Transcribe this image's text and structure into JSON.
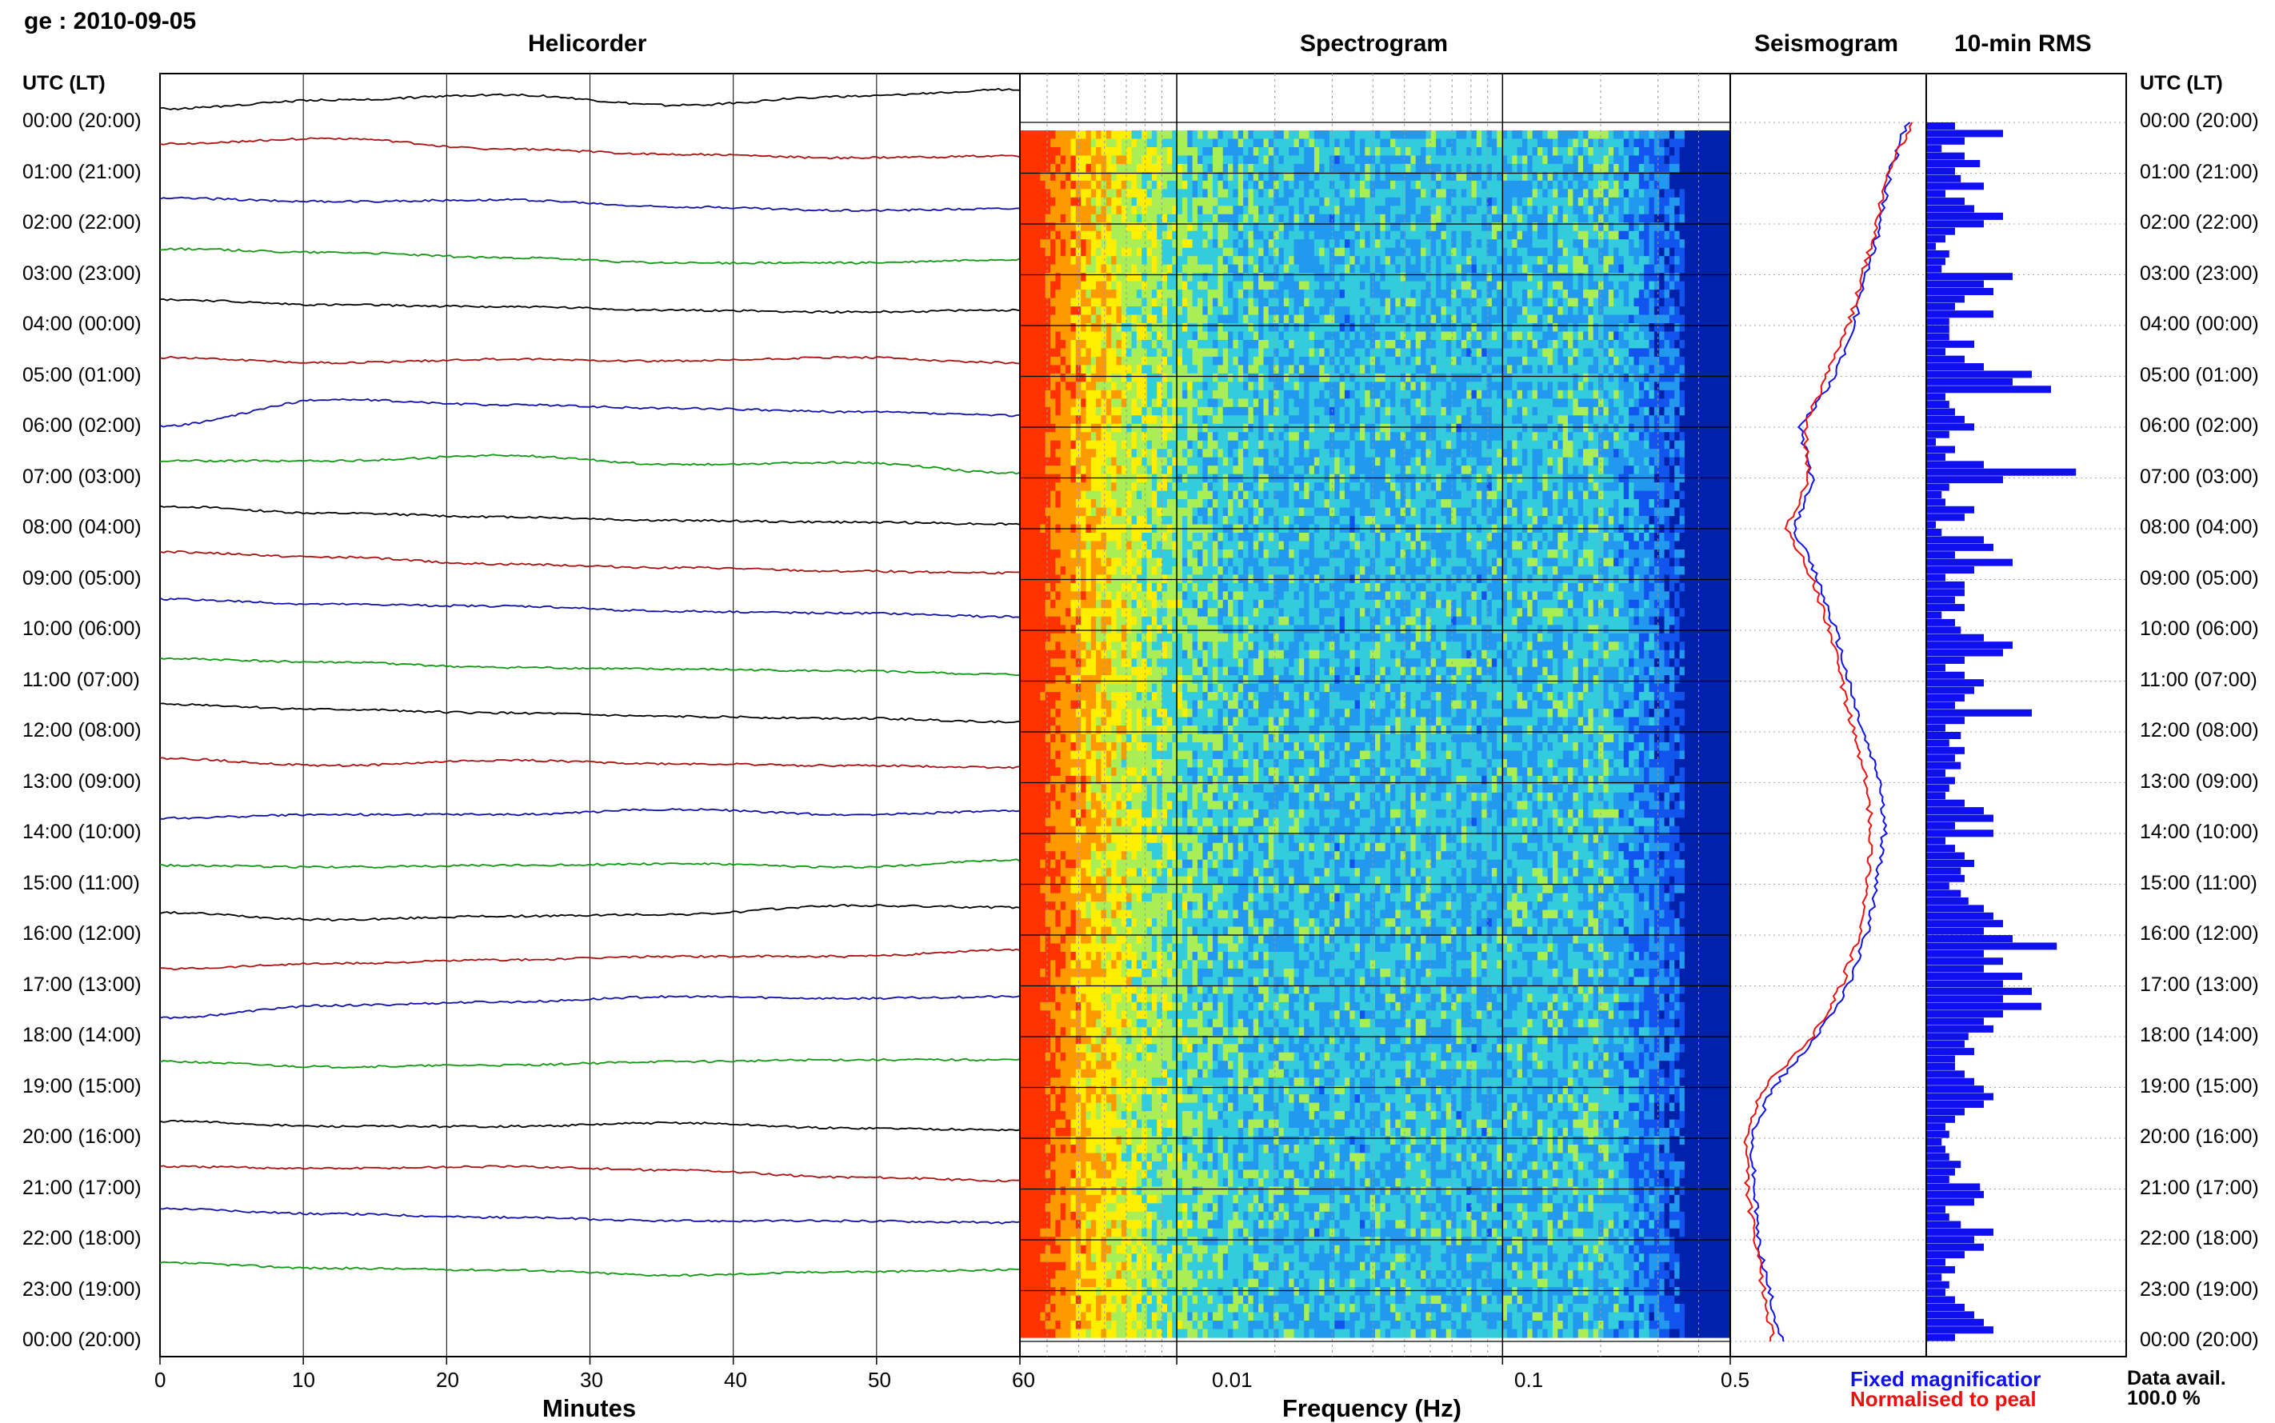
{
  "header": {
    "station_date": "ge : 2010-09-05"
  },
  "panels": {
    "helicorder": "Helicorder",
    "spectrogram": "Spectrogram",
    "seismogram": "Seismogram",
    "rms": "10-min RMS"
  },
  "time_axis_title": "UTC (LT)",
  "row_labels": [
    "00:00 (20:00)",
    "01:00 (21:00)",
    "02:00 (22:00)",
    "03:00 (23:00)",
    "04:00 (00:00)",
    "05:00 (01:00)",
    "06:00 (02:00)",
    "07:00 (03:00)",
    "08:00 (04:00)",
    "09:00 (05:00)",
    "10:00 (06:00)",
    "11:00 (07:00)",
    "12:00 (08:00)",
    "13:00 (09:00)",
    "14:00 (10:00)",
    "15:00 (11:00)",
    "16:00 (12:00)",
    "17:00 (13:00)",
    "18:00 (14:00)",
    "19:00 (15:00)",
    "20:00 (16:00)",
    "21:00 (17:00)",
    "22:00 (18:00)",
    "23:00 (19:00)",
    "00:00 (20:00)"
  ],
  "footer": {
    "minutes_label": "Minutes",
    "frequency_label": "Frequency (Hz)",
    "legend_fixed": "Fixed magnificatior",
    "legend_norm": "Normalised to peal",
    "data_avail_label": "Data avail.",
    "data_avail_value": "100.0 %"
  },
  "chart_data": [
    {
      "type": "line",
      "name": "helicorder",
      "title": "Helicorder",
      "xlabel": "Minutes",
      "x_ticks": [
        "0",
        "10",
        "20",
        "30",
        "40",
        "50",
        "60"
      ],
      "xlim": [
        0,
        60
      ],
      "trace_colors": [
        "#000000",
        "#aa1111",
        "#1111aa",
        "#119911"
      ],
      "trace_offsets": [
        [
          -0.5,
          0.0,
          0.3,
          -0.3,
          0.2,
          0.6
        ],
        [
          0.4,
          0.7,
          0.1,
          -0.2,
          -0.4,
          -0.3
        ],
        [
          0.2,
          0.0,
          0.1,
          -0.3,
          -0.5,
          -0.4
        ],
        [
          0.2,
          0.0,
          -0.3,
          -0.6,
          -0.6,
          -0.4
        ],
        [
          0.2,
          -0.1,
          -0.2,
          -0.4,
          -0.5,
          -0.4
        ],
        [
          -0.2,
          -0.5,
          -0.3,
          -0.4,
          -0.2,
          -0.5
        ],
        [
          -1.2,
          0.3,
          0.0,
          -0.2,
          -0.4,
          -0.6
        ],
        [
          -0.3,
          -0.3,
          0.0,
          -0.5,
          -0.4,
          -1.0
        ],
        [
          0.0,
          -0.4,
          -0.6,
          -0.8,
          -0.9,
          -1.0
        ],
        [
          0.3,
          0.0,
          -0.4,
          -0.6,
          -0.8,
          -0.9
        ],
        [
          0.5,
          0.2,
          0.1,
          -0.2,
          -0.3,
          -0.5
        ],
        [
          0.0,
          -0.2,
          -0.5,
          -0.6,
          -0.7,
          -0.9
        ],
        [
          0.3,
          0.0,
          -0.2,
          -0.4,
          -0.5,
          -0.7
        ],
        [
          0.1,
          -0.3,
          0.0,
          -0.2,
          -0.3,
          -0.4
        ],
        [
          -0.4,
          -0.2,
          -0.2,
          0.1,
          -0.2,
          0.0
        ],
        [
          -0.2,
          -0.3,
          -0.2,
          -0.1,
          -0.3,
          0.1
        ],
        [
          0.0,
          -0.4,
          -0.2,
          -0.1,
          0.4,
          0.3
        ],
        [
          -0.3,
          0.0,
          0.2,
          0.4,
          0.4,
          0.8
        ],
        [
          -0.2,
          0.5,
          0.7,
          1.0,
          0.9,
          1.0
        ],
        [
          0.2,
          -0.1,
          0.0,
          0.2,
          0.3,
          0.3
        ],
        [
          -0.3,
          -0.6,
          -0.6,
          -0.4,
          -0.7,
          -0.8
        ],
        [
          0.0,
          -0.1,
          0.0,
          -0.2,
          -0.6,
          -0.8
        ],
        [
          0.5,
          0.2,
          0.0,
          -0.2,
          -0.2,
          -0.3
        ],
        [
          0.3,
          0.0,
          -0.1,
          -0.4,
          -0.2,
          -0.1
        ]
      ]
    },
    {
      "type": "heatmap",
      "name": "spectrogram",
      "title": "Spectrogram",
      "xlabel": "Frequency (Hz)",
      "x_scale": "log",
      "xlim": [
        0.0033,
        0.5
      ],
      "x_ticks": [
        "60",
        "0.01",
        "0.1",
        "0.5"
      ],
      "colormap": [
        "#ff3300",
        "#ff9900",
        "#ffee00",
        "#aaee55",
        "#33ccdd",
        "#2299ee",
        "#1155ee",
        "#0022aa"
      ],
      "band_levels": [
        0.0,
        0.25,
        0.45,
        0.55,
        0.6,
        0.62,
        0.6,
        0.62,
        0.6,
        0.58,
        0.8,
        0.95
      ]
    },
    {
      "type": "line",
      "name": "seismogram",
      "title": "Seismogram",
      "series": [
        {
          "name": "Fixed magnificatior",
          "color": "#1010ee",
          "values": [
            0.95,
            0.85,
            0.8,
            0.72,
            0.65,
            0.55,
            0.35,
            0.42,
            0.32,
            0.45,
            0.55,
            0.62,
            0.7,
            0.8,
            0.82,
            0.78,
            0.72,
            0.62,
            0.45,
            0.2,
            0.08,
            0.1,
            0.12,
            0.18,
            0.25
          ]
        },
        {
          "name": "Normalised to peal",
          "color": "#ee1010",
          "values": [
            0.98,
            0.83,
            0.78,
            0.7,
            0.62,
            0.5,
            0.38,
            0.4,
            0.28,
            0.42,
            0.52,
            0.58,
            0.65,
            0.72,
            0.75,
            0.73,
            0.68,
            0.58,
            0.42,
            0.15,
            0.05,
            0.06,
            0.1,
            0.15,
            0.2
          ]
        }
      ]
    },
    {
      "type": "bar",
      "name": "rms",
      "title": "10-min RMS",
      "orientation": "horizontal",
      "color": "#1010ee",
      "values": [
        0.15,
        0.4,
        0.2,
        0.08,
        0.2,
        0.28,
        0.15,
        0.18,
        0.3,
        0.1,
        0.2,
        0.25,
        0.4,
        0.3,
        0.15,
        0.1,
        0.05,
        0.12,
        0.1,
        0.08,
        0.45,
        0.3,
        0.35,
        0.2,
        0.15,
        0.35,
        0.12,
        0.12,
        0.12,
        0.25,
        0.1,
        0.2,
        0.3,
        0.55,
        0.45,
        0.65,
        0.1,
        0.12,
        0.15,
        0.2,
        0.25,
        0.12,
        0.05,
        0.15,
        0.1,
        0.3,
        0.78,
        0.4,
        0.12,
        0.08,
        0.1,
        0.25,
        0.2,
        0.05,
        0.08,
        0.3,
        0.35,
        0.15,
        0.45,
        0.25,
        0.1,
        0.2,
        0.2,
        0.15,
        0.2,
        0.08,
        0.15,
        0.18,
        0.3,
        0.45,
        0.4,
        0.2,
        0.1,
        0.2,
        0.3,
        0.25,
        0.2,
        0.15,
        0.55,
        0.2,
        0.1,
        0.18,
        0.12,
        0.2,
        0.15,
        0.18,
        0.1,
        0.15,
        0.12,
        0.1,
        0.2,
        0.3,
        0.35,
        0.15,
        0.35,
        0.1,
        0.15,
        0.2,
        0.25,
        0.18,
        0.2,
        0.12,
        0.18,
        0.22,
        0.3,
        0.35,
        0.4,
        0.3,
        0.45,
        0.68,
        0.3,
        0.4,
        0.3,
        0.5,
        0.4,
        0.55,
        0.4,
        0.6,
        0.4,
        0.3,
        0.35,
        0.22,
        0.2,
        0.25,
        0.15,
        0.15,
        0.2,
        0.25,
        0.3,
        0.35,
        0.3,
        0.2,
        0.15,
        0.1,
        0.12,
        0.08,
        0.1,
        0.12,
        0.18,
        0.15,
        0.12,
        0.28,
        0.3,
        0.25,
        0.1,
        0.12,
        0.18,
        0.35,
        0.25,
        0.3,
        0.2,
        0.1,
        0.15,
        0.08,
        0.12,
        0.1,
        0.15,
        0.2,
        0.25,
        0.3,
        0.35,
        0.15
      ]
    }
  ]
}
